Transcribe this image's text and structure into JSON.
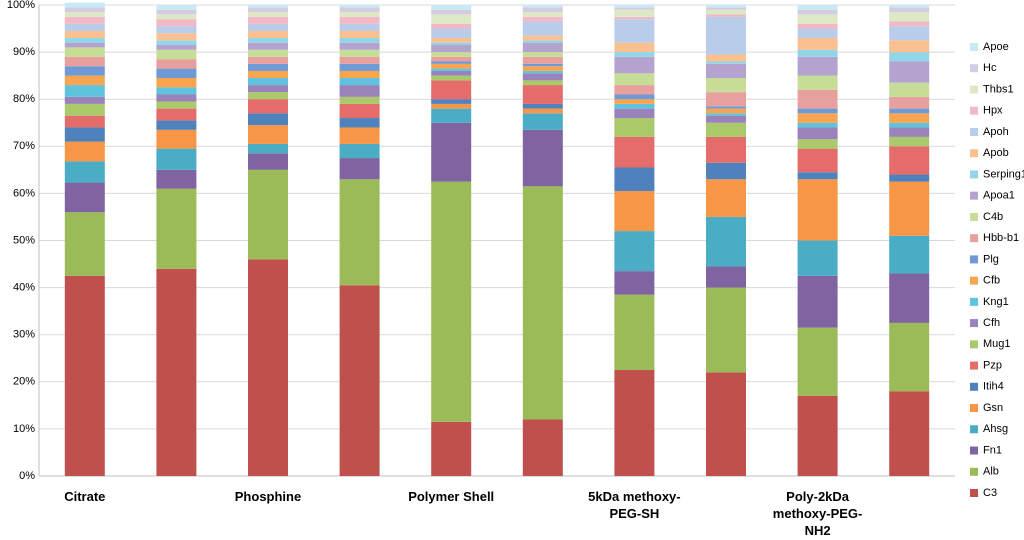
{
  "chart_data": {
    "type": "stacked_bar",
    "categories": [
      "Citrate",
      null,
      "Phosphine",
      null,
      "Polymer Shell",
      null,
      "5kDa methoxy-PEG-SH",
      null,
      "Poly-2kDa methoxy-PEG-NH2",
      null
    ],
    "ylim": [
      0,
      100
    ],
    "yticks": [
      {
        "value": 0,
        "label": "0%"
      },
      {
        "value": 10,
        "label": "10%"
      },
      {
        "value": 20,
        "label": "20%"
      },
      {
        "value": 30,
        "label": "30%"
      },
      {
        "value": 40,
        "label": "40%"
      },
      {
        "value": 50,
        "label": "50%"
      },
      {
        "value": 60,
        "label": "60%"
      },
      {
        "value": 70,
        "label": "70%"
      },
      {
        "value": 80,
        "label": "80%"
      },
      {
        "value": 90,
        "label": "90%"
      },
      {
        "value": 100,
        "label": "100%"
      }
    ],
    "grid": true,
    "legend": "right",
    "series": [
      {
        "name": "C3",
        "color": "#c0504d",
        "values": [
          42.5,
          44,
          46,
          40.5,
          11.5,
          12,
          22.5,
          22,
          17,
          18
        ]
      },
      {
        "name": "Alb",
        "color": "#9bbb59",
        "values": [
          13.5,
          17,
          19,
          22.5,
          51,
          49.5,
          16,
          18,
          14.5,
          14.5
        ]
      },
      {
        "name": "Fn1",
        "color": "#8064a2",
        "values": [
          6.3,
          4,
          3.5,
          4.5,
          12.5,
          12,
          5,
          4.5,
          11,
          10.5
        ]
      },
      {
        "name": "Ahsg",
        "color": "#4bacc6",
        "values": [
          4.5,
          4.5,
          2,
          3,
          3,
          3.5,
          8.5,
          10.5,
          7.5,
          8
        ]
      },
      {
        "name": "Gsn",
        "color": "#f79646",
        "values": [
          4.2,
          4,
          4,
          3.5,
          1,
          1,
          8.5,
          8,
          13,
          11.5
        ]
      },
      {
        "name": "Itih4",
        "color": "#4f81bd",
        "values": [
          3,
          2,
          2.5,
          2,
          1,
          1,
          5,
          3.5,
          1.5,
          1.5
        ]
      },
      {
        "name": "Pzp",
        "color": "#e46c6a",
        "values": [
          2.5,
          2.5,
          3,
          3,
          4,
          4,
          6.5,
          5.5,
          5,
          6
        ]
      },
      {
        "name": "Mug1",
        "color": "#a9c96b",
        "values": [
          2.5,
          1.5,
          1.5,
          1.5,
          1,
          1,
          4,
          3,
          2,
          2
        ]
      },
      {
        "name": "Cfh",
        "color": "#9a82bb",
        "values": [
          1.5,
          1.5,
          1.5,
          2.5,
          1,
          1.5,
          2,
          1.5,
          2.5,
          2
        ]
      },
      {
        "name": "Kng1",
        "color": "#5fc3dd",
        "values": [
          2.5,
          1.5,
          1.5,
          1.5,
          0.5,
          0.5,
          1,
          0.5,
          1,
          1
        ]
      },
      {
        "name": "Cfb",
        "color": "#f9a550",
        "values": [
          2,
          2,
          1.5,
          1.5,
          1,
          1,
          1,
          1,
          2,
          2
        ]
      },
      {
        "name": "Plg",
        "color": "#6f9ad6",
        "values": [
          2,
          2,
          1.5,
          1.5,
          0.5,
          0.5,
          1,
          0.5,
          1,
          1
        ]
      },
      {
        "name": "Hbb-b1",
        "color": "#e8a09e",
        "values": [
          2,
          2,
          1.5,
          1.5,
          1,
          1.5,
          2,
          3,
          4,
          2.5
        ]
      },
      {
        "name": "C4b",
        "color": "#c5dd97",
        "values": [
          2,
          2,
          1.5,
          1.5,
          1,
          1,
          2.5,
          3,
          3,
          3
        ]
      },
      {
        "name": "Apoa1",
        "color": "#b5a3cf",
        "values": [
          1,
          1,
          1.5,
          1.5,
          1.5,
          2,
          3.5,
          3,
          4,
          4.5
        ]
      },
      {
        "name": "Serping1",
        "color": "#93d5e8",
        "values": [
          1,
          1,
          1,
          1,
          0.5,
          0.5,
          1,
          0.5,
          1.5,
          2
        ]
      },
      {
        "name": "Apob",
        "color": "#fac090",
        "values": [
          1.5,
          1.5,
          1.5,
          1.5,
          1,
          1,
          2,
          1.5,
          2.5,
          2.5
        ]
      },
      {
        "name": "Apoh",
        "color": "#b9cdeb",
        "values": [
          1.5,
          1.5,
          1.5,
          1.5,
          2,
          3,
          5,
          8,
          2,
          3
        ]
      },
      {
        "name": "Hpx",
        "color": "#f2b8c6",
        "values": [
          1.5,
          1.5,
          1.5,
          1.5,
          1,
          1,
          0.5,
          0.5,
          1,
          1
        ]
      },
      {
        "name": "Thbs1",
        "color": "#dde9c4",
        "values": [
          1,
          1,
          1,
          1,
          2,
          1,
          1.5,
          1,
          2,
          2
        ]
      },
      {
        "name": "Hc",
        "color": "#d3cce4",
        "values": [
          1,
          1,
          1,
          1,
          1,
          1,
          0.5,
          0.5,
          1,
          1
        ]
      },
      {
        "name": "Apoe",
        "color": "#c6ebf5",
        "values": [
          1,
          1,
          0.5,
          0.5,
          1,
          0.5,
          0.5,
          0.5,
          1,
          0.5
        ]
      }
    ]
  }
}
